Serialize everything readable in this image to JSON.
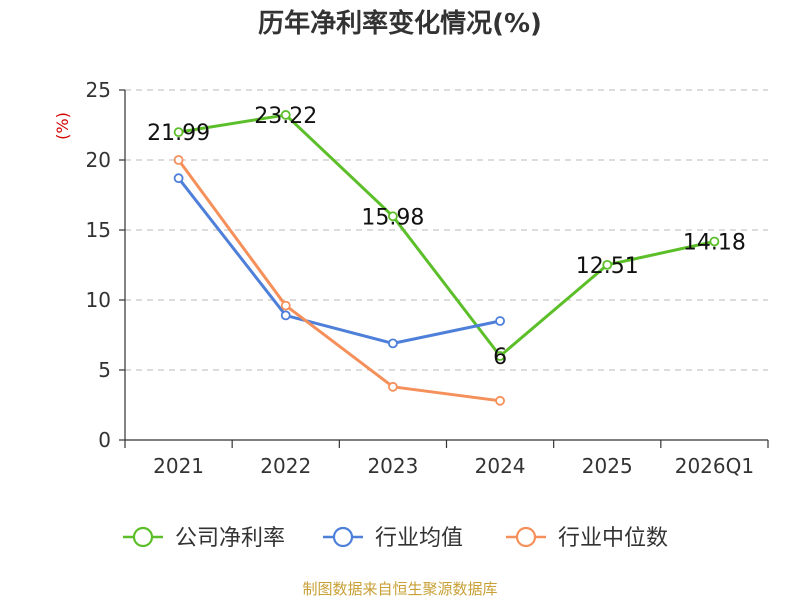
{
  "chart_data": {
    "type": "line",
    "title": "历年净利率变化情况(%)",
    "ylabel": "(%)",
    "xlabel": "",
    "categories": [
      "2021",
      "2022",
      "2023",
      "2024",
      "2025",
      "2026Q1"
    ],
    "ylim": [
      0,
      25
    ],
    "yticks": [
      0,
      5,
      10,
      15,
      20,
      25
    ],
    "grid": true,
    "legend_position": "bottom",
    "series": [
      {
        "name": "公司净利率",
        "color": "#5cbf2a",
        "values": [
          21.99,
          23.22,
          15.98,
          6,
          12.51,
          14.18
        ],
        "labels": [
          "21.99",
          "23.22",
          "15.98",
          "6",
          "12.51",
          "14.18"
        ]
      },
      {
        "name": "行业均值",
        "color": "#4e7fd9",
        "values": [
          18.7,
          8.9,
          6.9,
          8.5,
          null,
          null
        ]
      },
      {
        "name": "行业中位数",
        "color": "#f5905a",
        "values": [
          20.0,
          9.6,
          3.8,
          2.8,
          null,
          null
        ]
      }
    ]
  },
  "source_text": "制图数据来自恒生聚源数据库"
}
